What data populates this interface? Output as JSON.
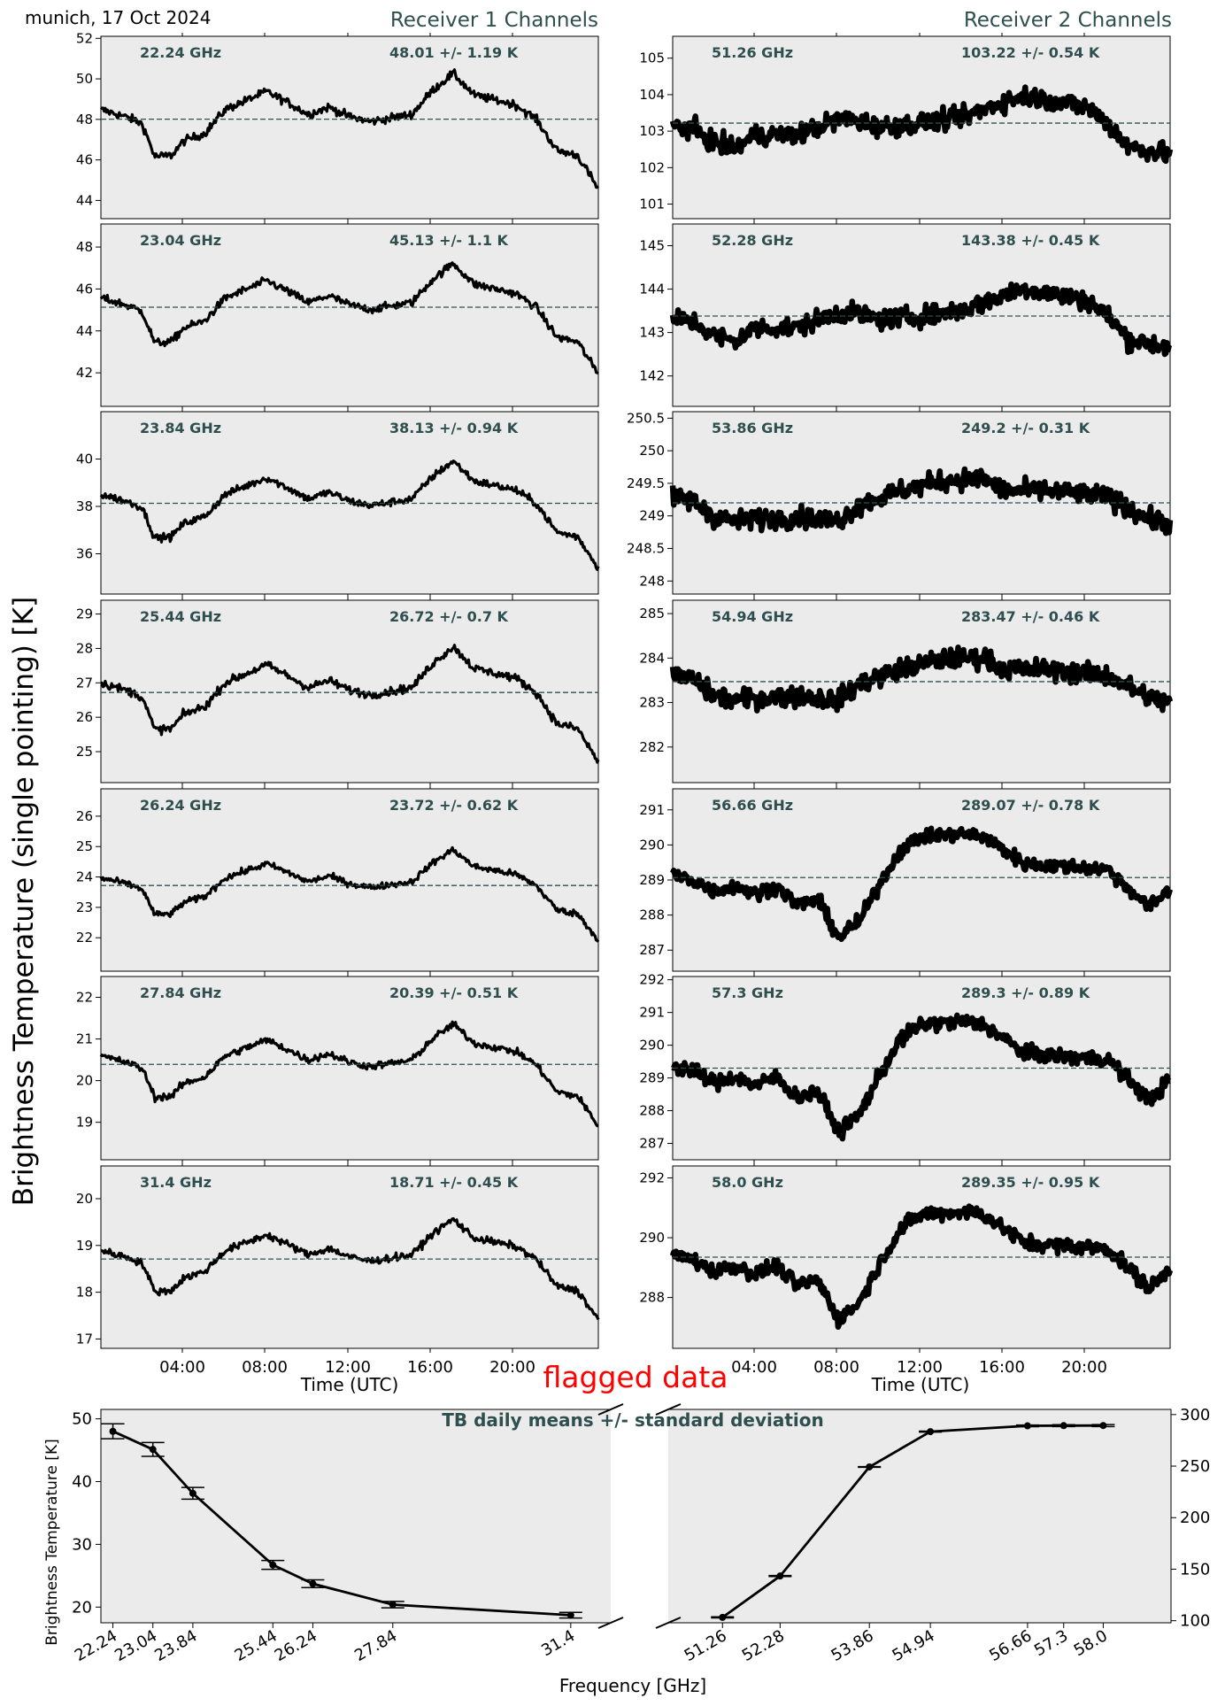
{
  "header": {
    "location_date": "munich, 17 Oct 2024",
    "receiver1_title": "Receiver 1 Channels",
    "receiver2_title": "Receiver 2 Channels",
    "shared_ylabel": "Brightness Temperature (single pointing) [K]",
    "flag_label": "flagged data",
    "time_xlabel": "Time (UTC)"
  },
  "colors": {
    "panel_bg": "#ebebeb",
    "annotation": "#2f4f4f",
    "mean_line": "#2f4f4f",
    "data": "#000000",
    "flag": "#ff0000"
  },
  "chart_data": [
    {
      "type": "line",
      "title": "Receiver 1 Channels",
      "xlabel": "Time (UTC)",
      "ylabel": "Brightness Temperature (single pointing) [K]",
      "x_ticks": [
        "04:00",
        "08:00",
        "12:00",
        "16:00",
        "20:00"
      ],
      "panels": [
        {
          "freq": "22.24 GHz",
          "stat": "48.01 +/- 1.19 K",
          "mean": 48.01,
          "std": 1.19,
          "ylim": [
            43.1,
            52.1
          ],
          "yticks": [
            44,
            46,
            48,
            50,
            52
          ]
        },
        {
          "freq": "23.04 GHz",
          "stat": "45.13 +/- 1.1 K",
          "mean": 45.13,
          "std": 1.1,
          "ylim": [
            40.4,
            49.1
          ],
          "yticks": [
            42,
            44,
            46,
            48
          ]
        },
        {
          "freq": "23.84 GHz",
          "stat": "38.13 +/- 0.94 K",
          "mean": 38.13,
          "std": 0.94,
          "ylim": [
            34.3,
            42.0
          ],
          "yticks": [
            36,
            38,
            40
          ]
        },
        {
          "freq": "25.44 GHz",
          "stat": "26.72 +/- 0.7 K",
          "mean": 26.72,
          "std": 0.7,
          "ylim": [
            24.1,
            29.4
          ],
          "yticks": [
            25,
            26,
            27,
            28,
            29
          ]
        },
        {
          "freq": "26.24 GHz",
          "stat": "23.72 +/- 0.62 K",
          "mean": 23.72,
          "std": 0.62,
          "ylim": [
            20.9,
            26.9
          ],
          "yticks": [
            22,
            23,
            24,
            25,
            26
          ]
        },
        {
          "freq": "27.84 GHz",
          "stat": "20.39 +/- 0.51 K",
          "mean": 20.39,
          "std": 0.51,
          "ylim": [
            18.1,
            22.5
          ],
          "yticks": [
            19,
            20,
            21,
            22
          ]
        },
        {
          "freq": "31.4 GHz",
          "stat": "18.71 +/- 0.45 K",
          "mean": 18.71,
          "std": 0.45,
          "ylim": [
            16.8,
            20.7
          ],
          "yticks": [
            17,
            18,
            19,
            20
          ]
        }
      ]
    },
    {
      "type": "line",
      "title": "Receiver 2 Channels",
      "xlabel": "Time (UTC)",
      "x_ticks": [
        "04:00",
        "08:00",
        "12:00",
        "16:00",
        "20:00"
      ],
      "panels": [
        {
          "freq": "51.26 GHz",
          "stat": "103.22 +/- 0.54 K",
          "mean": 103.22,
          "std": 0.54,
          "ylim": [
            100.6,
            105.6
          ],
          "yticks": [
            101,
            102,
            103,
            104,
            105
          ]
        },
        {
          "freq": "52.28 GHz",
          "stat": "143.38 +/- 0.45 K",
          "mean": 143.38,
          "std": 0.45,
          "ylim": [
            141.3,
            145.5
          ],
          "yticks": [
            142,
            143,
            144,
            145
          ]
        },
        {
          "freq": "53.86 GHz",
          "stat": "249.2 +/- 0.31 K",
          "mean": 249.2,
          "std": 0.31,
          "ylim": [
            247.8,
            250.6
          ],
          "yticks": [
            248.0,
            248.5,
            249.0,
            249.5,
            250.0,
            250.5
          ]
        },
        {
          "freq": "54.94 GHz",
          "stat": "283.47 +/- 0.46 K",
          "mean": 283.47,
          "std": 0.46,
          "ylim": [
            281.2,
            285.3
          ],
          "yticks": [
            282,
            283,
            284,
            285
          ]
        },
        {
          "freq": "56.66 GHz",
          "stat": "289.07 +/- 0.78 K",
          "mean": 289.07,
          "std": 0.78,
          "ylim": [
            286.4,
            291.6
          ],
          "yticks": [
            287,
            288,
            289,
            290,
            291
          ]
        },
        {
          "freq": "57.3 GHz",
          "stat": "289.3 +/- 0.89 K",
          "mean": 289.3,
          "std": 0.89,
          "ylim": [
            286.5,
            292.1
          ],
          "yticks": [
            287,
            288,
            289,
            290,
            291,
            292
          ]
        },
        {
          "freq": "58.0 GHz",
          "stat": "289.35 +/- 0.95 K",
          "mean": 289.35,
          "std": 0.95,
          "ylim": [
            286.3,
            292.4
          ],
          "yticks": [
            288,
            290,
            292
          ]
        }
      ]
    },
    {
      "type": "line",
      "title": "TB daily means +/- standard deviation",
      "xlabel": "Frequency [GHz]",
      "ylabel": "Brightness Temperature [K]",
      "left": {
        "ylim": [
          17.5,
          51.5
        ],
        "yticks": [
          20,
          30,
          40,
          50
        ],
        "x": [
          22.24,
          23.04,
          23.84,
          25.44,
          26.24,
          27.84,
          31.4
        ],
        "tick_labels": [
          "22.24",
          "23.04",
          "23.84",
          "25.44",
          "26.24",
          "27.84",
          "31.4"
        ],
        "values": [
          48.01,
          45.13,
          38.13,
          26.72,
          23.72,
          20.39,
          18.71
        ],
        "errors": [
          1.19,
          1.1,
          0.94,
          0.7,
          0.62,
          0.51,
          0.45
        ]
      },
      "right": {
        "ylim": [
          98,
          305
        ],
        "yticks": [
          100,
          150,
          200,
          250,
          300
        ],
        "x": [
          51.26,
          52.28,
          53.86,
          54.94,
          56.66,
          57.3,
          58.0
        ],
        "tick_labels": [
          "51.26",
          "52.28",
          "53.86",
          "54.94",
          "56.66",
          "57.3",
          "58.0"
        ],
        "values": [
          103.22,
          143.38,
          249.2,
          283.47,
          289.07,
          289.3,
          289.35
        ],
        "errors": [
          0.54,
          0.45,
          0.31,
          0.46,
          0.78,
          0.89,
          0.95
        ]
      }
    }
  ]
}
